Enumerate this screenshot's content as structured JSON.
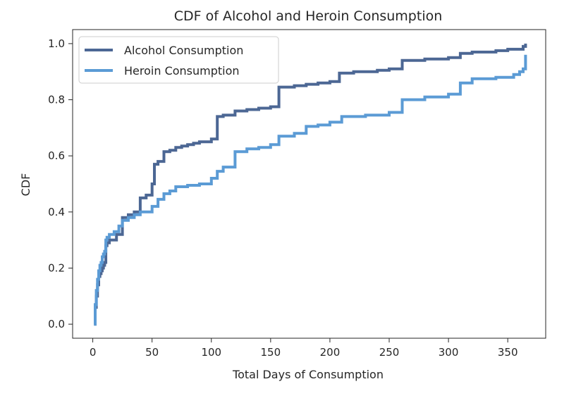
{
  "chart_data": {
    "type": "line",
    "title": "CDF of Alcohol and Heroin Consumption",
    "xlabel": "Total Days of Consumption",
    "ylabel": "CDF",
    "xlim": [
      -17,
      382
    ],
    "ylim": [
      -0.05,
      1.05
    ],
    "xticks": [
      0,
      50,
      100,
      150,
      200,
      250,
      300,
      350
    ],
    "yticks": [
      0.0,
      0.2,
      0.4,
      0.6,
      0.8,
      1.0
    ],
    "xtick_labels": [
      "0",
      "50",
      "100",
      "150",
      "200",
      "250",
      "300",
      "350"
    ],
    "ytick_labels": [
      "0.0",
      "0.2",
      "0.4",
      "0.6",
      "0.8",
      "1.0"
    ],
    "grid": false,
    "legend": "top-left",
    "series": [
      {
        "name": "Alcohol Consumption",
        "color": "#4c6794",
        "x": [
          1,
          2,
          3,
          4,
          5,
          6,
          7,
          8,
          9,
          10,
          11,
          12,
          14,
          20,
          25,
          30,
          35,
          40,
          45,
          50,
          52,
          55,
          60,
          65,
          70,
          75,
          80,
          85,
          90,
          100,
          105,
          110,
          120,
          130,
          140,
          150,
          157,
          170,
          180,
          190,
          200,
          208,
          220,
          230,
          240,
          250,
          261,
          280,
          300,
          310,
          320,
          340,
          350,
          360,
          363,
          365
        ],
        "y": [
          0.0,
          0.06,
          0.1,
          0.14,
          0.17,
          0.18,
          0.19,
          0.2,
          0.21,
          0.22,
          0.28,
          0.29,
          0.3,
          0.32,
          0.38,
          0.39,
          0.4,
          0.45,
          0.46,
          0.5,
          0.57,
          0.58,
          0.615,
          0.62,
          0.63,
          0.635,
          0.64,
          0.645,
          0.65,
          0.66,
          0.74,
          0.745,
          0.76,
          0.765,
          0.77,
          0.775,
          0.845,
          0.85,
          0.855,
          0.86,
          0.865,
          0.895,
          0.9,
          0.9,
          0.905,
          0.91,
          0.94,
          0.945,
          0.95,
          0.965,
          0.97,
          0.975,
          0.98,
          0.98,
          0.99,
          1.0
        ]
      },
      {
        "name": "Heroin Consumption",
        "color": "#5b9bd5",
        "x": [
          1,
          2,
          3,
          4,
          5,
          6,
          7,
          8,
          9,
          10,
          11,
          12,
          14,
          18,
          22,
          25,
          30,
          35,
          40,
          45,
          50,
          55,
          60,
          65,
          70,
          80,
          90,
          100,
          105,
          110,
          120,
          130,
          140,
          150,
          157,
          170,
          180,
          190,
          200,
          210,
          230,
          250,
          261,
          280,
          300,
          310,
          320,
          340,
          355,
          360,
          363,
          365
        ],
        "y": [
          0.0,
          0.07,
          0.12,
          0.16,
          0.19,
          0.21,
          0.22,
          0.24,
          0.25,
          0.26,
          0.3,
          0.31,
          0.32,
          0.33,
          0.35,
          0.37,
          0.38,
          0.39,
          0.4,
          0.4,
          0.42,
          0.445,
          0.465,
          0.475,
          0.49,
          0.495,
          0.5,
          0.52,
          0.545,
          0.56,
          0.615,
          0.625,
          0.63,
          0.64,
          0.67,
          0.68,
          0.705,
          0.71,
          0.72,
          0.74,
          0.745,
          0.755,
          0.8,
          0.81,
          0.82,
          0.86,
          0.875,
          0.88,
          0.89,
          0.9,
          0.91,
          0.96
        ]
      }
    ]
  }
}
